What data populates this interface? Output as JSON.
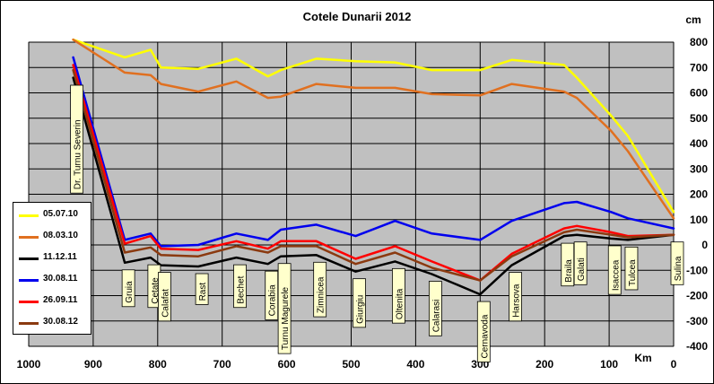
{
  "chart_data": {
    "type": "line",
    "title": "Cotele Dunarii 2012",
    "xlabel": "Km",
    "ylabel": "cm",
    "xlim": [
      1000,
      0
    ],
    "ylim": [
      -400,
      800
    ],
    "x_ticks": [
      "1000",
      "900",
      "800",
      "700",
      "600",
      "500",
      "400",
      "300",
      "200",
      "100",
      "0"
    ],
    "y_ticks": [
      "800",
      "700",
      "600",
      "500",
      "400",
      "300",
      "200",
      "100",
      "0",
      "-100",
      "-200",
      "-300",
      "-400"
    ],
    "legend_position": "left",
    "grid": true,
    "plot_background": "#c0c0c0",
    "x": [
      931,
      851,
      811,
      795,
      737,
      678,
      629,
      609,
      554,
      493,
      432,
      375,
      300,
      251,
      170,
      150,
      97,
      71,
      0
    ],
    "stations": [
      "Dr. Turnu Severin",
      "Gruia",
      "Cetate",
      "Calafat",
      "Rast",
      "Bechet",
      "Corabia",
      "Turnu Magurele",
      "Zimnicea",
      "Giurgiu",
      "Oltenita",
      "Calarasi",
      "Cernavoda",
      "Harsova",
      "Braila",
      "Galati",
      "Isaccea",
      "Tulcea",
      "Sulina"
    ],
    "series": [
      {
        "name": "05.07.10",
        "color": "#ffff00",
        "values": [
          810,
          740,
          770,
          700,
          695,
          735,
          665,
          690,
          735,
          725,
          720,
          690,
          690,
          730,
          710,
          660,
          510,
          430,
          130
        ]
      },
      {
        "name": "08.03.10",
        "color": "#e07020",
        "values": [
          810,
          680,
          670,
          635,
          605,
          645,
          580,
          585,
          635,
          620,
          620,
          595,
          590,
          635,
          605,
          580,
          450,
          370,
          105
        ]
      },
      {
        "name": "11.12.11",
        "color": "#000000",
        "values": [
          660,
          -70,
          -50,
          -80,
          -85,
          -50,
          -75,
          -45,
          -40,
          -105,
          -65,
          -115,
          -195,
          -80,
          35,
          40,
          25,
          20,
          40
        ]
      },
      {
        "name": "30.08.11",
        "color": "#0000ee",
        "values": [
          740,
          20,
          45,
          -5,
          0,
          45,
          20,
          60,
          80,
          35,
          95,
          45,
          20,
          95,
          165,
          170,
          130,
          105,
          65
        ]
      },
      {
        "name": "26.09.11",
        "color": "#ff0000",
        "values": [
          710,
          5,
          35,
          -15,
          -20,
          15,
          -15,
          15,
          15,
          -55,
          -5,
          -65,
          -140,
          -35,
          65,
          75,
          50,
          35,
          40
        ]
      },
      {
        "name": "30.08.12",
        "color": "#8b3a10",
        "values": [
          690,
          -30,
          -10,
          -40,
          -45,
          -5,
          -30,
          -5,
          -5,
          -75,
          -30,
          -90,
          -140,
          -45,
          50,
          60,
          40,
          30,
          40
        ]
      }
    ]
  }
}
